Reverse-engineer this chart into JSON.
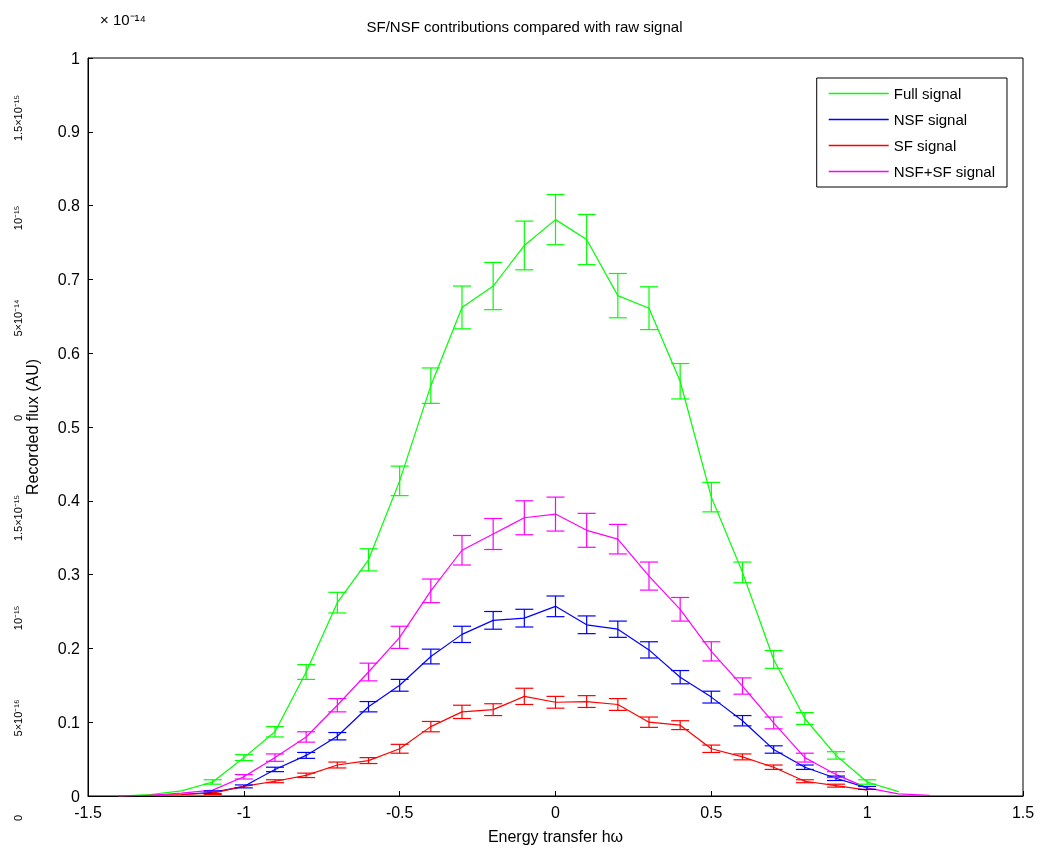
{
  "chart_data": {
    "type": "line",
    "title": "SF/NSF contributions compared with raw signal",
    "xlabel": "Energy transfer hω",
    "ylabel": "Recorded flux (AU)",
    "annotations": [
      "× 10⁻¹⁴",
      "1.5×10⁻¹⁵",
      "10⁻¹⁵",
      "5×10⁻¹⁴",
      "0",
      "1.5×10⁻¹⁵",
      "10⁻¹⁵",
      "5×10⁻¹⁶",
      "0"
    ],
    "x": [
      -1.4,
      -1.3,
      -1.2,
      -1.1,
      -1.0,
      -0.9,
      -0.8,
      -0.7,
      -0.6,
      -0.5,
      -0.4,
      -0.3,
      -0.2,
      -0.1,
      0,
      0.1,
      0.2,
      0.3,
      0.4,
      0.5,
      0.6,
      0.7,
      0.8,
      0.9,
      1.0,
      1.1,
      1.2
    ],
    "series": [
      {
        "name": "Full signal",
        "color": "#00ff00",
        "values": [
          0,
          0.002,
          0.007,
          0.019,
          0.052,
          0.087,
          0.168,
          0.262,
          0.32,
          0.427,
          0.556,
          0.662,
          0.691,
          0.746,
          0.781,
          0.754,
          0.678,
          0.661,
          0.562,
          0.405,
          0.303,
          0.185,
          0.105,
          0.055,
          0.019,
          0.006,
          null
        ],
        "errors": [
          null,
          null,
          null,
          0.003,
          0.004,
          0.007,
          0.01,
          0.014,
          0.015,
          0.02,
          0.024,
          0.029,
          0.032,
          0.033,
          0.034,
          0.034,
          0.03,
          0.029,
          0.024,
          0.02,
          0.014,
          0.012,
          0.008,
          0.005,
          0.003,
          null,
          null
        ]
      },
      {
        "name": "NSF signal",
        "color": "#0000ff",
        "values": [
          null,
          null,
          0.002,
          0.005,
          0.013,
          0.036,
          0.055,
          0.081,
          0.121,
          0.15,
          0.189,
          0.219,
          0.238,
          0.241,
          0.257,
          0.232,
          0.226,
          0.198,
          0.161,
          0.134,
          0.102,
          0.063,
          0.039,
          0.024,
          0.011,
          null,
          null
        ],
        "errors": [
          null,
          null,
          null,
          0.002,
          0.002,
          0.003,
          0.004,
          0.005,
          0.007,
          0.008,
          0.01,
          0.011,
          0.012,
          0.012,
          0.014,
          0.012,
          0.011,
          0.011,
          0.009,
          0.008,
          0.007,
          0.005,
          0.003,
          0.003,
          0.002,
          null,
          null
        ]
      },
      {
        "name": "SF signal",
        "color": "#ff0000",
        "values": [
          0,
          0.001,
          0.002,
          0.004,
          0.013,
          0.02,
          0.028,
          0.042,
          0.048,
          0.064,
          0.094,
          0.114,
          0.117,
          0.135,
          0.127,
          0.128,
          0.124,
          0.1,
          0.096,
          0.064,
          0.053,
          0.039,
          0.02,
          0.014,
          0.008,
          null,
          null
        ],
        "errors": [
          null,
          null,
          null,
          0.002,
          null,
          0.002,
          0.003,
          0.004,
          0.004,
          0.006,
          0.007,
          0.009,
          0.008,
          0.011,
          0.008,
          0.008,
          0.008,
          0.007,
          0.006,
          0.005,
          0.004,
          0.003,
          0.002,
          0.002,
          null,
          null,
          null
        ]
      },
      {
        "name": "NSF+SF signal",
        "color": "#ff00ff",
        "values": [
          0,
          0.001,
          0.004,
          0.008,
          0.026,
          0.052,
          0.08,
          0.123,
          0.168,
          0.215,
          0.278,
          0.333,
          0.355,
          0.377,
          0.382,
          0.36,
          0.348,
          0.298,
          0.253,
          0.196,
          0.149,
          0.099,
          0.052,
          0.029,
          0.011,
          0.003,
          0.001
        ],
        "errors": [
          null,
          null,
          null,
          null,
          0.003,
          0.005,
          0.007,
          0.009,
          0.012,
          0.015,
          0.016,
          0.02,
          0.021,
          0.023,
          0.023,
          0.023,
          0.02,
          0.019,
          0.016,
          0.013,
          0.011,
          0.008,
          0.006,
          0.004,
          null,
          null,
          null
        ]
      }
    ],
    "xlim": [
      -1.5,
      1.5
    ],
    "xticks": [
      -1.5,
      -1,
      -0.5,
      0,
      0.5,
      1,
      1.5
    ],
    "ylim": [
      0,
      1
    ],
    "yticks": [
      0,
      0.1,
      0.2,
      0.3,
      0.4,
      0.5,
      0.6,
      0.7,
      0.8,
      0.9,
      1
    ],
    "grid": false,
    "legend": "top right",
    "marker": "none",
    "line_style": "solid"
  }
}
